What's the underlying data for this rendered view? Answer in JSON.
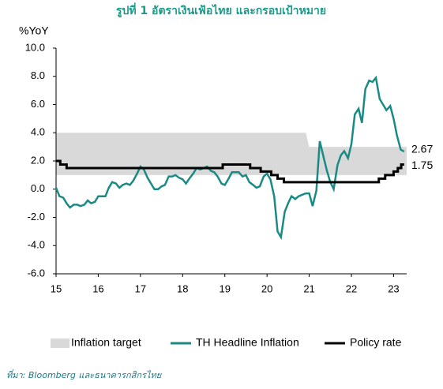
{
  "chart_data": {
    "type": "line",
    "title": "รูปที่ 1 อัตราเงินเฟ้อไทย และกรอบเป้าหมาย",
    "y_label": "%YoY",
    "source": "ที่มา: Bloomberg และธนาคารกสิกรไทย",
    "xlim": [
      15,
      23.31
    ],
    "xticks": [
      15,
      16,
      17,
      18,
      19,
      20,
      21,
      22,
      23
    ],
    "ylim": [
      -6,
      10
    ],
    "yticks": [
      {
        "value": 10,
        "label": "10.0"
      },
      {
        "value": 8,
        "label": "8.0"
      },
      {
        "value": 6,
        "label": "6.0"
      },
      {
        "value": 4,
        "label": "4.0"
      },
      {
        "value": 2,
        "label": "2.0"
      },
      {
        "value": 0,
        "label": "0.0"
      },
      {
        "value": -2,
        "label": "-2.0"
      },
      {
        "value": -4,
        "label": "-4.0"
      },
      {
        "value": -6,
        "label": "-6.0"
      }
    ],
    "series": [
      {
        "name": "Inflation target",
        "kind": "band",
        "color": "#d9d9d9",
        "x": [
          15,
          20.92,
          21.0,
          23.31
        ],
        "values": [
          4,
          4,
          3,
          3
        ],
        "base": [
          1,
          1,
          1,
          1
        ]
      },
      {
        "name": "TH Headline Inflation",
        "kind": "line",
        "color": "#1b8a84",
        "x": [
          15,
          15.08,
          15.17,
          15.25,
          15.33,
          15.42,
          15.5,
          15.58,
          15.67,
          15.75,
          15.83,
          15.92,
          16,
          16.08,
          16.17,
          16.25,
          16.33,
          16.42,
          16.5,
          16.58,
          16.67,
          16.75,
          16.83,
          16.92,
          17,
          17.08,
          17.17,
          17.25,
          17.33,
          17.42,
          17.5,
          17.58,
          17.67,
          17.75,
          17.83,
          17.92,
          18,
          18.08,
          18.17,
          18.25,
          18.33,
          18.42,
          18.5,
          18.58,
          18.67,
          18.75,
          18.83,
          18.92,
          19,
          19.08,
          19.17,
          19.25,
          19.33,
          19.42,
          19.5,
          19.58,
          19.67,
          19.75,
          19.83,
          19.92,
          20,
          20.08,
          20.17,
          20.25,
          20.33,
          20.42,
          20.5,
          20.58,
          20.67,
          20.75,
          20.83,
          20.92,
          21,
          21.08,
          21.17,
          21.25,
          21.33,
          21.42,
          21.5,
          21.58,
          21.67,
          21.75,
          21.83,
          21.92,
          22,
          22.08,
          22.17,
          22.25,
          22.33,
          22.42,
          22.5,
          22.58,
          22.67,
          22.75,
          22.83,
          22.92,
          23,
          23.08,
          23.17,
          23.25
        ],
        "values": [
          0.1,
          -0.5,
          -0.6,
          -1.0,
          -1.3,
          -1.1,
          -1.1,
          -1.2,
          -1.1,
          -0.8,
          -1.0,
          -0.9,
          -0.5,
          -0.5,
          -0.5,
          0.1,
          0.5,
          0.4,
          0.1,
          0.3,
          0.4,
          0.3,
          0.6,
          1.1,
          1.6,
          1.4,
          0.8,
          0.4,
          0.0,
          0.0,
          0.2,
          0.3,
          0.9,
          0.9,
          1.0,
          0.8,
          0.7,
          0.4,
          0.8,
          1.1,
          1.5,
          1.4,
          1.5,
          1.6,
          1.3,
          1.2,
          0.9,
          0.4,
          0.3,
          0.7,
          1.2,
          1.2,
          1.2,
          0.9,
          1.0,
          0.5,
          0.3,
          0.1,
          0.2,
          0.9,
          1.1,
          0.7,
          -0.5,
          -3.0,
          -3.4,
          -1.6,
          -1.0,
          -0.5,
          -0.7,
          -0.5,
          -0.4,
          -0.3,
          -0.3,
          -1.2,
          -0.1,
          3.4,
          2.4,
          1.3,
          0.5,
          0.0,
          1.7,
          2.4,
          2.7,
          2.2,
          3.2,
          5.3,
          5.7,
          4.7,
          7.1,
          7.7,
          7.6,
          7.9,
          6.4,
          6.0,
          5.6,
          5.9,
          5.0,
          3.8,
          2.8,
          2.67
        ]
      },
      {
        "name": "Policy rate",
        "kind": "step",
        "color": "#000000",
        "x": [
          15,
          15.1,
          15.25,
          18.95,
          19.6,
          19.85,
          20.1,
          20.25,
          20.4,
          22.65,
          22.8,
          23.0,
          23.1,
          23.18,
          23.25
        ],
        "values": [
          2.0,
          1.75,
          1.5,
          1.75,
          1.5,
          1.25,
          1.0,
          0.75,
          0.5,
          0.75,
          1.0,
          1.25,
          1.5,
          1.75,
          1.75
        ]
      }
    ]
  }
}
